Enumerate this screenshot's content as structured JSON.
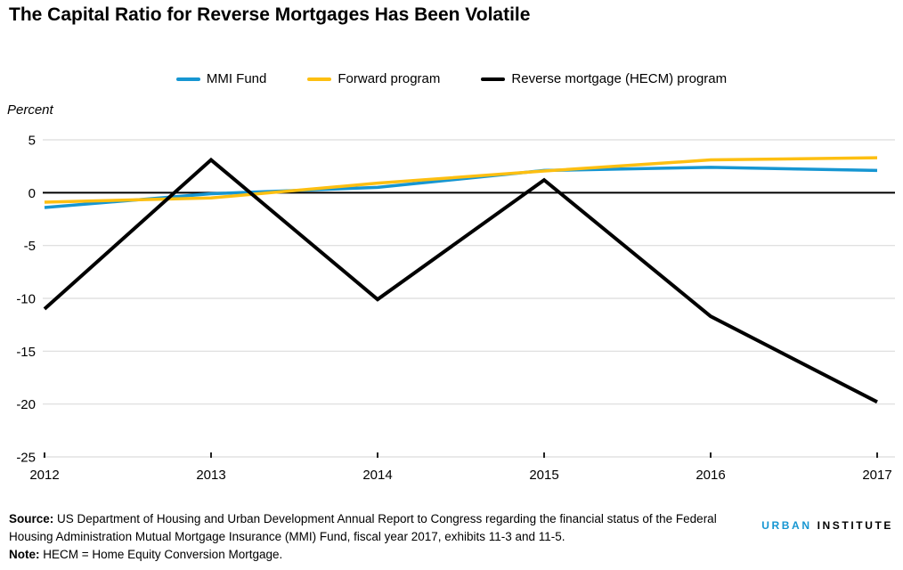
{
  "title": "The Capital Ratio for Reverse Mortgages Has Been Volatile",
  "legend": [
    {
      "label": "MMI Fund",
      "color": "#1696d2"
    },
    {
      "label": "Forward program",
      "color": "#fdbf11"
    },
    {
      "label": "Reverse mortgage (HECM) program",
      "color": "#000000"
    }
  ],
  "chart_data": {
    "type": "line",
    "title": "The Capital Ratio for Reverse Mortgages Has Been Volatile",
    "ylabel": "Percent",
    "x": [
      2012,
      2013,
      2014,
      2015,
      2016,
      2017
    ],
    "series": [
      {
        "name": "MMI Fund",
        "color": "#1696d2",
        "values": [
          -1.4,
          -0.1,
          0.5,
          2.1,
          2.4,
          2.1
        ]
      },
      {
        "name": "Forward program",
        "color": "#fdbf11",
        "values": [
          -0.9,
          -0.5,
          0.9,
          2.05,
          3.1,
          3.3
        ]
      },
      {
        "name": "Reverse mortgage (HECM) program",
        "color": "#000000",
        "values": [
          -11.0,
          3.1,
          -10.1,
          1.2,
          -11.7,
          -19.8
        ]
      }
    ],
    "ylim": [
      -25,
      5
    ],
    "yticks": [
      5,
      0,
      -5,
      -10,
      -15,
      -20,
      -25
    ],
    "grid": true,
    "legend_position": "top",
    "zero_line": true
  },
  "footer": {
    "source_label": "Source:",
    "source_text": " US Department of Housing and Urban Development Annual Report to Congress regarding the financial status of the Federal Housing Administration Mutual Mortgage Insurance (MMI) Fund, fiscal year 2017, exhibits 11-3 and 11-5.",
    "note_label": "Note:",
    "note_text": " HECM = Home Equity Conversion Mortgage."
  },
  "logo": {
    "word1": "URBAN",
    "word2": "INSTITUTE",
    "word1_color": "#1696d2",
    "word2_color": "#000000"
  }
}
